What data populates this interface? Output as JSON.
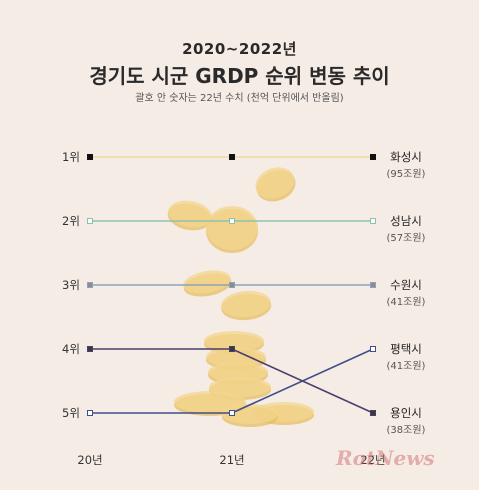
{
  "header": {
    "years": "2020~2022년",
    "title": "경기도 시군 GRDP 순위 변동 추이",
    "note": "괄호 안 숫자는 22년 수치 (천억 단위에서 반올림)"
  },
  "watermark": {
    "text": "RotNews"
  },
  "chart_data": {
    "type": "line",
    "subtype": "bump",
    "x": [
      "20년",
      "21년",
      "22년"
    ],
    "y_ticks": [
      "1위",
      "2위",
      "3위",
      "4위",
      "5위"
    ],
    "ylim": [
      1,
      5
    ],
    "y_inverted": true,
    "grid": false,
    "series": [
      {
        "name": "화성시",
        "value_label": "(95조원)",
        "values": [
          1,
          1,
          1
        ],
        "color": "#f0d9a0",
        "marker": "#111111"
      },
      {
        "name": "성남시",
        "value_label": "(57조원)",
        "values": [
          2,
          2,
          2
        ],
        "color": "#8fc2ae",
        "marker": "#ffffff"
      },
      {
        "name": "수원시",
        "value_label": "(41조원)",
        "values": [
          3,
          3,
          3
        ],
        "color": "#8ea1bd",
        "marker": "#8c8c8c"
      },
      {
        "name": "평택시",
        "value_label": "(41조원)",
        "values": [
          5,
          5,
          4
        ],
        "color": "#3f4f8a",
        "marker": "#ffffff"
      },
      {
        "name": "용인시",
        "value_label": "(38조원)",
        "values": [
          4,
          4,
          5
        ],
        "color": "#4a3f6a",
        "marker": "#3a3a3a"
      }
    ]
  }
}
